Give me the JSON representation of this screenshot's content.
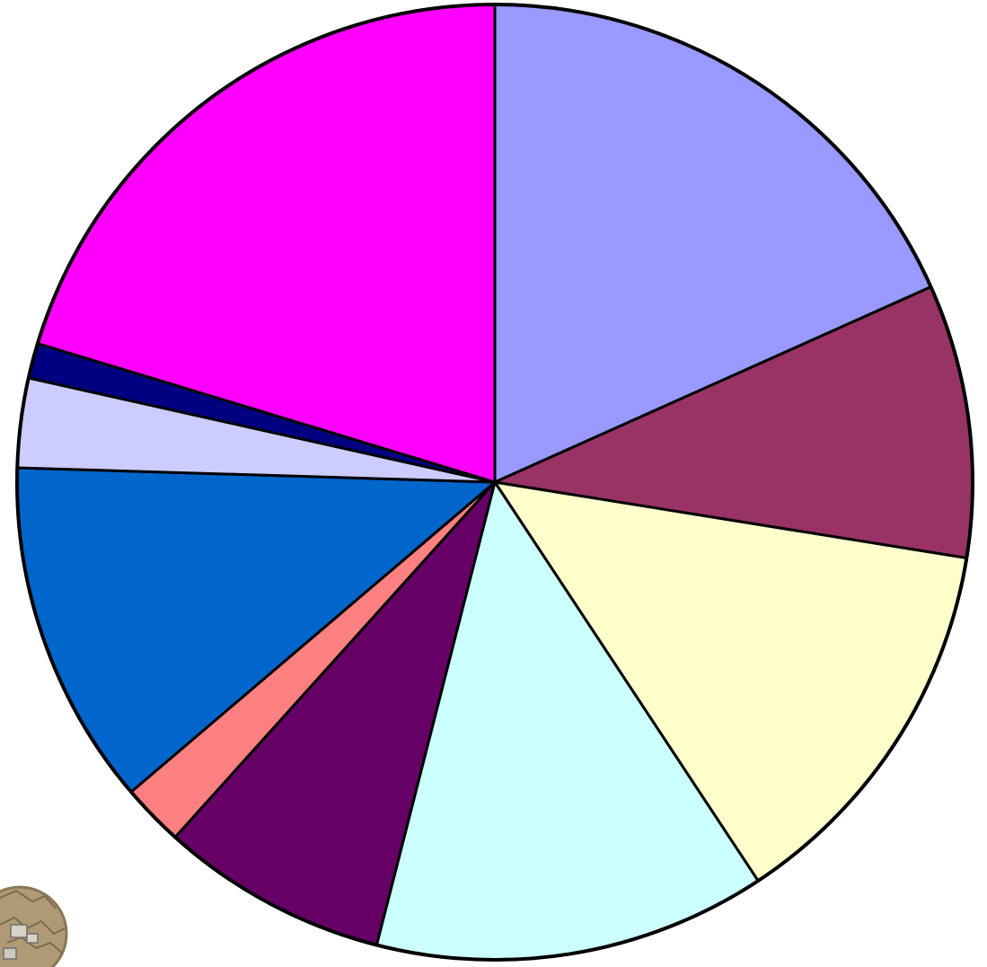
{
  "chart_data": {
    "type": "pie",
    "start": "top",
    "direction": "clockwise",
    "slices": [
      {
        "value": 20.0,
        "color": "#9999ff"
      },
      {
        "value": 10.1,
        "color": "#993366"
      },
      {
        "value": 14.4,
        "color": "#ffffcc"
      },
      {
        "value": 14.5,
        "color": "#ccffff"
      },
      {
        "value": 8.4,
        "color": "#660066"
      },
      {
        "value": 2.3,
        "color": "#ff8080"
      },
      {
        "value": 12.8,
        "color": "#0066cc"
      },
      {
        "value": 3.3,
        "color": "#ccccff"
      },
      {
        "value": 1.3,
        "color": "#000080"
      },
      {
        "value": 22.2,
        "color": "#ff00ff"
      }
    ]
  },
  "decoration": {
    "icon": "stone-map-icon"
  }
}
